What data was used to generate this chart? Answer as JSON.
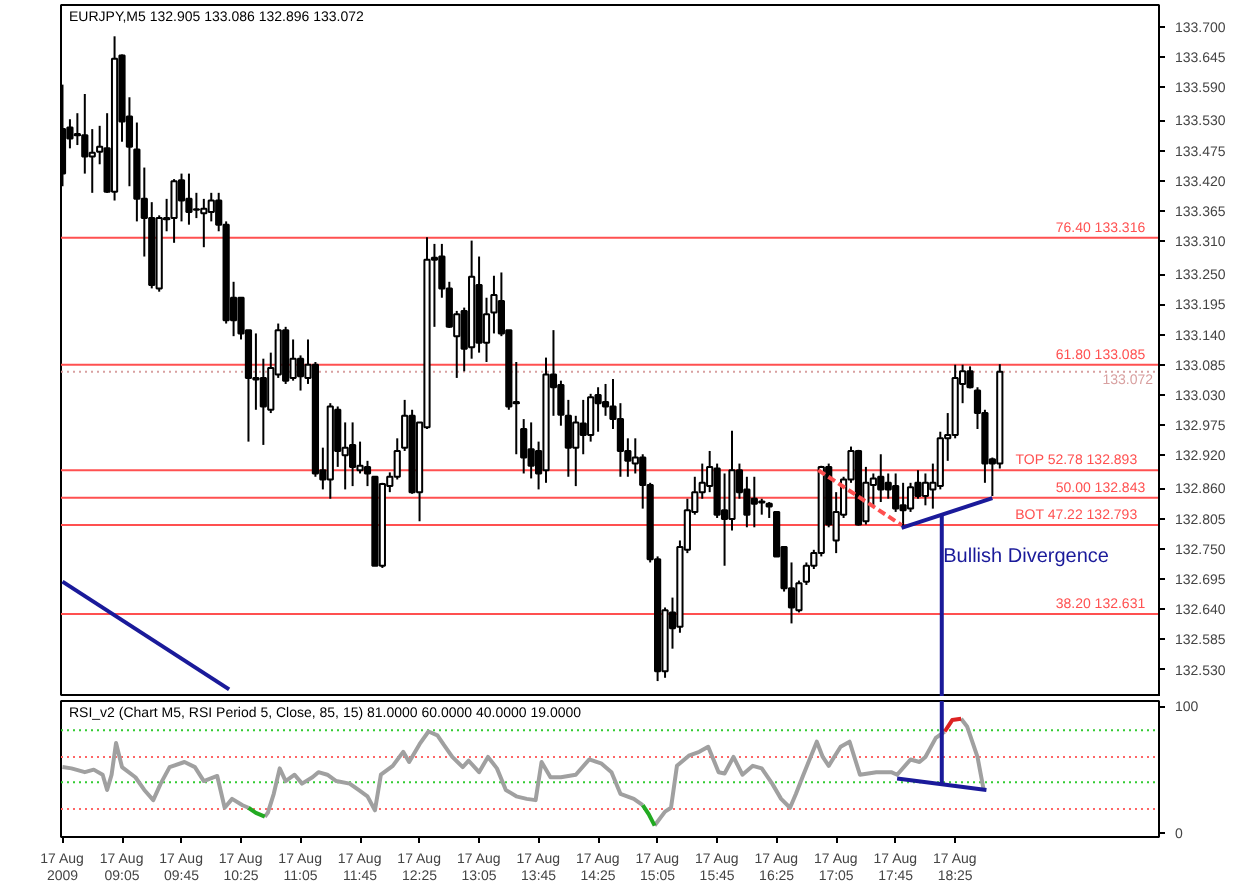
{
  "chart_data": [
    {
      "type": "candlestick",
      "title": "EURJPY,M5  132.905 133.086 132.896 133.072",
      "x": [
        "2009-08-17T08:25",
        "2009-08-17T08:30",
        "2009-08-17T08:35",
        "2009-08-17T08:40",
        "2009-08-17T08:45",
        "2009-08-17T08:50",
        "2009-08-17T08:55",
        "2009-08-17T09:00",
        "2009-08-17T09:05",
        "2009-08-17T09:10",
        "2009-08-17T09:15",
        "2009-08-17T09:20",
        "2009-08-17T09:25",
        "2009-08-17T09:30",
        "2009-08-17T09:35",
        "2009-08-17T09:40",
        "2009-08-17T09:45",
        "2009-08-17T09:50",
        "2009-08-17T09:55",
        "2009-08-17T10:00",
        "2009-08-17T10:05",
        "2009-08-17T10:10",
        "2009-08-17T10:15",
        "2009-08-17T10:20",
        "2009-08-17T10:25",
        "2009-08-17T10:30",
        "2009-08-17T10:35",
        "2009-08-17T10:40",
        "2009-08-17T10:45",
        "2009-08-17T10:50",
        "2009-08-17T10:55",
        "2009-08-17T11:00",
        "2009-08-17T11:05",
        "2009-08-17T11:10",
        "2009-08-17T11:15",
        "2009-08-17T11:20",
        "2009-08-17T11:25",
        "2009-08-17T11:30",
        "2009-08-17T11:35",
        "2009-08-17T11:40",
        "2009-08-17T11:45",
        "2009-08-17T11:50",
        "2009-08-17T11:55",
        "2009-08-17T12:00",
        "2009-08-17T12:05",
        "2009-08-17T12:10",
        "2009-08-17T12:15",
        "2009-08-17T12:20",
        "2009-08-17T12:25",
        "2009-08-17T12:30",
        "2009-08-17T12:35",
        "2009-08-17T12:40",
        "2009-08-17T12:45",
        "2009-08-17T12:50",
        "2009-08-17T12:55",
        "2009-08-17T13:00",
        "2009-08-17T13:05",
        "2009-08-17T13:10",
        "2009-08-17T13:15",
        "2009-08-17T13:20",
        "2009-08-17T13:25",
        "2009-08-17T13:30",
        "2009-08-17T13:35",
        "2009-08-17T13:40",
        "2009-08-17T13:45",
        "2009-08-17T13:50",
        "2009-08-17T13:55",
        "2009-08-17T14:00",
        "2009-08-17T14:05",
        "2009-08-17T14:10",
        "2009-08-17T14:15",
        "2009-08-17T14:20",
        "2009-08-17T14:25",
        "2009-08-17T14:30",
        "2009-08-17T14:35",
        "2009-08-17T14:40",
        "2009-08-17T14:45",
        "2009-08-17T14:50",
        "2009-08-17T14:55",
        "2009-08-17T15:00",
        "2009-08-17T15:05",
        "2009-08-17T15:10",
        "2009-08-17T15:15",
        "2009-08-17T15:20",
        "2009-08-17T15:25",
        "2009-08-17T15:30",
        "2009-08-17T15:35",
        "2009-08-17T15:40",
        "2009-08-17T15:45",
        "2009-08-17T15:50",
        "2009-08-17T15:55",
        "2009-08-17T16:00",
        "2009-08-17T16:05",
        "2009-08-17T16:10",
        "2009-08-17T16:15",
        "2009-08-17T16:20",
        "2009-08-17T16:25",
        "2009-08-17T16:30",
        "2009-08-17T16:35",
        "2009-08-17T16:40",
        "2009-08-17T16:45",
        "2009-08-17T16:50",
        "2009-08-17T16:55",
        "2009-08-17T17:00",
        "2009-08-17T17:05",
        "2009-08-17T17:10",
        "2009-08-17T17:15",
        "2009-08-17T17:20",
        "2009-08-17T17:25",
        "2009-08-17T17:30",
        "2009-08-17T17:35",
        "2009-08-17T17:40",
        "2009-08-17T17:45",
        "2009-08-17T17:50",
        "2009-08-17T17:55",
        "2009-08-17T18:00",
        "2009-08-17T18:05",
        "2009-08-17T18:10",
        "2009-08-17T18:15",
        "2009-08-17T18:20",
        "2009-08-17T18:25",
        "2009-08-17T18:30",
        "2009-08-17T18:35",
        "2009-08-17T18:40",
        "2009-08-17T18:45",
        "2009-08-17T18:50",
        "2009-08-17T18:55"
      ],
      "ohlc": [
        [
          133.514,
          133.595,
          133.41,
          133.433
        ],
        [
          133.517,
          133.532,
          133.479,
          133.497
        ],
        [
          133.503,
          133.543,
          133.485,
          133.505
        ],
        [
          133.503,
          133.578,
          133.433,
          133.464
        ],
        [
          133.464,
          133.514,
          133.398,
          133.471
        ],
        [
          133.473,
          133.52,
          133.45,
          133.482
        ],
        [
          133.479,
          133.543,
          133.398,
          133.4
        ],
        [
          133.4,
          133.683,
          133.384,
          133.642
        ],
        [
          133.648,
          133.65,
          133.491,
          133.528
        ],
        [
          133.537,
          133.572,
          133.41,
          133.482
        ],
        [
          133.477,
          133.526,
          133.346,
          133.387
        ],
        [
          133.387,
          133.444,
          133.282,
          133.352
        ],
        [
          133.352,
          133.381,
          133.224,
          133.23
        ],
        [
          133.224,
          133.357,
          133.218,
          133.352
        ],
        [
          133.35,
          133.387,
          133.328,
          133.352
        ],
        [
          133.352,
          133.423,
          133.307,
          133.419
        ],
        [
          133.421,
          133.433,
          133.346,
          133.384
        ],
        [
          133.387,
          133.433,
          133.34,
          133.363
        ],
        [
          133.367,
          133.398,
          133.352,
          133.368
        ],
        [
          133.361,
          133.387,
          133.299,
          133.369
        ],
        [
          133.363,
          133.398,
          133.346,
          133.384
        ],
        [
          133.384,
          133.398,
          133.328,
          133.34
        ],
        [
          133.34,
          133.346,
          133.16,
          133.166
        ],
        [
          133.207,
          133.236,
          133.137,
          133.166
        ],
        [
          133.207,
          133.207,
          133.131,
          133.142
        ],
        [
          133.148,
          133.148,
          132.945,
          133.061
        ],
        [
          133.061,
          133.142,
          133.003,
          133.058
        ],
        [
          133.061,
          133.096,
          132.939,
          133.009
        ],
        [
          133.003,
          133.107,
          132.997,
          133.079
        ],
        [
          133.067,
          133.16,
          133.061,
          133.148
        ],
        [
          133.148,
          133.154,
          133.05,
          133.056
        ],
        [
          133.061,
          133.131,
          133.056,
          133.096
        ],
        [
          133.096,
          133.102,
          133.038,
          133.064
        ],
        [
          133.061,
          133.131,
          133.05,
          133.085
        ],
        [
          133.085,
          133.09,
          132.881,
          132.887
        ],
        [
          132.893,
          132.934,
          132.858,
          132.876
        ],
        [
          132.876,
          133.015,
          132.841,
          133.009
        ],
        [
          133.003,
          133.009,
          132.899,
          132.928
        ],
        [
          132.92,
          132.98,
          132.858,
          132.934
        ],
        [
          132.939,
          132.98,
          132.864,
          132.899
        ],
        [
          132.893,
          132.945,
          132.887,
          132.901
        ],
        [
          132.899,
          132.91,
          132.864,
          132.887
        ],
        [
          132.881,
          132.881,
          132.719,
          132.719
        ],
        [
          132.719,
          132.87,
          132.715,
          132.868
        ],
        [
          132.864,
          132.889,
          132.853,
          132.881
        ],
        [
          132.881,
          132.951,
          132.876,
          132.928
        ],
        [
          132.934,
          133.021,
          132.928,
          132.992
        ],
        [
          132.992,
          133.003,
          132.85,
          132.853
        ],
        [
          132.853,
          132.98,
          132.8,
          132.98
        ],
        [
          132.971,
          133.317,
          132.968,
          133.276
        ],
        [
          133.28,
          133.305,
          133.154,
          133.276
        ],
        [
          133.282,
          133.305,
          133.207,
          133.224
        ],
        [
          133.224,
          133.236,
          133.152,
          133.154
        ],
        [
          133.137,
          133.183,
          133.061,
          133.177
        ],
        [
          133.183,
          133.189,
          133.073,
          133.114
        ],
        [
          133.117,
          133.311,
          133.096,
          133.245
        ],
        [
          133.23,
          133.282,
          133.107,
          133.125
        ],
        [
          133.125,
          133.207,
          133.09,
          133.177
        ],
        [
          133.18,
          133.247,
          133.142,
          133.212
        ],
        [
          133.201,
          133.253,
          133.137,
          133.142
        ],
        [
          133.148,
          133.148,
          133.003,
          133.009
        ],
        [
          133.015,
          133.09,
          132.922,
          133.017
        ],
        [
          132.968,
          132.986,
          132.887,
          132.916
        ],
        [
          132.931,
          132.98,
          132.878,
          132.901
        ],
        [
          132.928,
          132.945,
          132.858,
          132.887
        ],
        [
          132.893,
          133.098,
          132.87,
          133.067
        ],
        [
          133.067,
          133.148,
          132.992,
          133.044
        ],
        [
          133.048,
          133.056,
          132.974,
          132.994
        ],
        [
          132.992,
          133.021,
          132.881,
          132.934
        ],
        [
          132.934,
          132.992,
          132.864,
          132.98
        ],
        [
          132.978,
          133.021,
          132.922,
          132.957
        ],
        [
          132.957,
          133.032,
          132.945,
          133.026
        ],
        [
          133.03,
          133.044,
          132.963,
          133.015
        ],
        [
          133.017,
          133.05,
          132.992,
          133.009
        ],
        [
          133.009,
          133.059,
          132.968,
          132.986
        ],
        [
          132.986,
          133.015,
          132.881,
          132.928
        ],
        [
          132.928,
          132.951,
          132.881,
          132.91
        ],
        [
          132.905,
          132.951,
          132.887,
          132.916
        ],
        [
          132.916,
          132.922,
          132.823,
          132.866
        ],
        [
          132.866,
          132.87,
          132.725,
          132.731
        ],
        [
          132.731,
          132.736,
          132.509,
          132.527
        ],
        [
          132.527,
          132.643,
          132.515,
          132.638
        ],
        [
          132.634,
          132.661,
          132.568,
          132.605
        ],
        [
          132.608,
          132.765,
          132.597,
          132.753
        ],
        [
          132.748,
          132.841,
          132.742,
          132.82
        ],
        [
          132.817,
          132.881,
          132.812,
          132.853
        ],
        [
          132.853,
          132.905,
          132.841,
          132.87
        ],
        [
          132.864,
          132.928,
          132.853,
          132.899
        ],
        [
          132.896,
          132.905,
          132.806,
          132.812
        ],
        [
          132.82,
          132.887,
          132.719,
          132.804
        ],
        [
          132.804,
          132.965,
          132.783,
          132.893
        ],
        [
          132.893,
          132.905,
          132.841,
          132.853
        ],
        [
          132.858,
          132.881,
          132.789,
          132.812
        ],
        [
          132.841,
          132.881,
          132.789,
          132.832
        ],
        [
          132.834,
          132.841,
          132.812,
          132.836
        ],
        [
          132.832,
          132.835,
          132.806,
          132.827
        ],
        [
          132.817,
          132.817,
          132.736,
          132.736
        ],
        [
          132.753,
          132.753,
          132.672,
          132.678
        ],
        [
          132.678,
          132.725,
          132.614,
          132.643
        ],
        [
          132.638,
          132.692,
          132.634,
          132.687
        ],
        [
          132.69,
          132.725,
          132.684,
          132.719
        ],
        [
          132.719,
          132.748,
          132.713,
          132.742
        ],
        [
          132.742,
          132.901,
          132.736,
          132.899
        ],
        [
          132.899,
          132.905,
          132.789,
          132.794
        ],
        [
          132.765,
          132.853,
          132.742,
          132.817
        ],
        [
          132.812,
          132.881,
          132.806,
          132.876
        ],
        [
          132.876,
          132.936,
          132.87,
          132.928
        ],
        [
          132.928,
          132.93,
          132.792,
          132.794
        ],
        [
          132.8,
          132.899,
          132.794,
          132.87
        ],
        [
          132.866,
          132.887,
          132.829,
          132.878
        ],
        [
          132.881,
          132.922,
          132.835,
          132.858
        ],
        [
          132.87,
          132.887,
          132.841,
          132.858
        ],
        [
          132.864,
          132.887,
          132.817,
          132.823
        ],
        [
          132.829,
          132.87,
          132.789,
          132.82
        ],
        [
          132.823,
          132.87,
          132.817,
          132.862
        ],
        [
          132.87,
          132.893,
          132.841,
          132.846
        ],
        [
          132.846,
          132.887,
          132.829,
          132.87
        ],
        [
          132.858,
          132.905,
          132.823,
          132.87
        ],
        [
          132.864,
          132.963,
          132.858,
          132.951
        ],
        [
          132.951,
          132.997,
          132.91,
          132.957
        ],
        [
          132.957,
          133.085,
          132.951,
          133.061
        ],
        [
          133.05,
          133.085,
          133.015,
          133.073
        ],
        [
          133.073,
          133.082,
          133.042,
          133.044
        ],
        [
          133.038,
          133.044,
          132.968,
          132.997
        ],
        [
          132.997,
          133.003,
          132.87,
          132.905
        ],
        [
          132.913,
          132.916,
          132.846,
          132.905
        ],
        [
          132.905,
          133.086,
          132.896,
          133.072
        ]
      ],
      "series": [
        {
          "type": "line",
          "color": "#1a1a9a",
          "x": [
            "2009-08-17T08:25",
            "2009-08-17T10:17"
          ],
          "values": [
            132.69,
            132.494
          ]
        },
        {
          "type": "line",
          "color": "#1a1a9a",
          "x": [
            "2009-08-17T17:49",
            "2009-08-17T18:50"
          ],
          "values": [
            132.788,
            132.842
          ]
        },
        {
          "type": "line",
          "color": "#1a1a9a",
          "x": [
            "2009-08-17T18:16",
            "2009-08-17T18:16"
          ],
          "values": [
            132.812,
            132.48
          ]
        },
        {
          "type": "line",
          "color": "#ff5050",
          "line_style": "dashed",
          "x": [
            "2009-08-17T16:53",
            "2009-08-17T17:49"
          ],
          "values": [
            132.893,
            132.793
          ]
        }
      ],
      "ref_lines": [
        {
          "axis": "y",
          "value": 133.316,
          "label": "76.40   133.316",
          "color": "#ff5050"
        },
        {
          "axis": "y",
          "value": 133.085,
          "label": "61.80   133.085",
          "color": "#ff5050"
        },
        {
          "axis": "y",
          "value": 132.893,
          "label": "TOP   52.78   132.893",
          "color": "#ff5050"
        },
        {
          "axis": "y",
          "value": 132.843,
          "label": "50.00   132.843",
          "color": "#ff5050"
        },
        {
          "axis": "y",
          "value": 132.793,
          "label": "BOT   47.22   132.793",
          "color": "#ff5050"
        },
        {
          "axis": "y",
          "value": 132.631,
          "label": "38.20   132.631",
          "color": "#ff5050"
        },
        {
          "axis": "y",
          "value": 133.072,
          "label": "133.072",
          "color": "#d8a0a0",
          "line_style": "dotted"
        }
      ],
      "annotations": [
        {
          "text": "Bullish Divergence",
          "x": "2009-08-17T18:17",
          "y": 132.735
        }
      ],
      "xlim": [
        "2009-08-17T08:24",
        "2009-08-17T20:42"
      ],
      "ylim": [
        132.48,
        133.74
      ],
      "tick_labels": "y",
      "yticks": [
        {
          "value": 133.7,
          "label": "133.700"
        },
        {
          "value": 133.645,
          "label": "133.645"
        },
        {
          "value": 133.59,
          "label": "133.590"
        },
        {
          "value": 133.53,
          "label": "133.530"
        },
        {
          "value": 133.475,
          "label": "133.475"
        },
        {
          "value": 133.42,
          "label": "133.420"
        },
        {
          "value": 133.365,
          "label": "133.365"
        },
        {
          "value": 133.31,
          "label": "133.310"
        },
        {
          "value": 133.25,
          "label": "133.250"
        },
        {
          "value": 133.195,
          "label": "133.195"
        },
        {
          "value": 133.14,
          "label": "133.140"
        },
        {
          "value": 133.085,
          "label": "133.085"
        },
        {
          "value": 133.03,
          "label": "133.030"
        },
        {
          "value": 132.975,
          "label": "132.975"
        },
        {
          "value": 132.92,
          "label": "132.920"
        },
        {
          "value": 132.86,
          "label": "132.860"
        },
        {
          "value": 132.805,
          "label": "132.805"
        },
        {
          "value": 132.75,
          "label": "132.750"
        },
        {
          "value": 132.695,
          "label": "132.695"
        },
        {
          "value": 132.64,
          "label": "132.640"
        },
        {
          "value": 132.585,
          "label": "132.585"
        },
        {
          "value": 132.53,
          "label": "132.530"
        }
      ]
    },
    {
      "type": "line",
      "title": "RSI_v2  (Chart M5, RSI Period 5, Close, 85, 15)  81.0000 60.0000 40.0000 19.0000",
      "series": [
        {
          "color": "#a0a0a0",
          "x": [
            "2009-08-17T08:25",
            "2009-08-17T08:31",
            "2009-08-17T08:40",
            "2009-08-17T08:46",
            "2009-08-17T08:52",
            "2009-08-17T08:55",
            "2009-08-17T08:58",
            "2009-08-17T09:01",
            "2009-08-17T09:05",
            "2009-08-17T09:14",
            "2009-08-17T09:20",
            "2009-08-17T09:26",
            "2009-08-17T09:31",
            "2009-08-17T09:37",
            "2009-08-17T09:47",
            "2009-08-17T09:54",
            "2009-08-17T10:00",
            "2009-08-17T10:09",
            "2009-08-17T10:14",
            "2009-08-17T10:19",
            "2009-08-17T10:26",
            "2009-08-17T10:30",
            "2009-08-17T10:35",
            "2009-08-17T10:41",
            "2009-08-17T10:43",
            "2009-08-17T10:47",
            "2009-08-17T10:51",
            "2009-08-17T10:55",
            "2009-08-17T11:01",
            "2009-08-17T11:06",
            "2009-08-17T11:13",
            "2009-08-17T11:17",
            "2009-08-17T11:23",
            "2009-08-17T11:29",
            "2009-08-17T11:38",
            "2009-08-17T11:44",
            "2009-08-17T11:50",
            "2009-08-17T11:55",
            "2009-08-17T11:59",
            "2009-08-17T12:07",
            "2009-08-17T12:14",
            "2009-08-17T12:18",
            "2009-08-17T12:25",
            "2009-08-17T12:31",
            "2009-08-17T12:37",
            "2009-08-17T12:41",
            "2009-08-17T12:47",
            "2009-08-17T12:54",
            "2009-08-17T12:58",
            "2009-08-17T13:05",
            "2009-08-17T13:11",
            "2009-08-17T13:17",
            "2009-08-17T13:23",
            "2009-08-17T13:30",
            "2009-08-17T13:37",
            "2009-08-17T13:43",
            "2009-08-17T13:47",
            "2009-08-17T13:53",
            "2009-08-17T14:00",
            "2009-08-17T14:10",
            "2009-08-17T14:19",
            "2009-08-17T14:27",
            "2009-08-17T14:34",
            "2009-08-17T14:40",
            "2009-08-17T14:49",
            "2009-08-17T14:55",
            "2009-08-17T14:59",
            "2009-08-17T15:03",
            "2009-08-17T15:10",
            "2009-08-17T15:14",
            "2009-08-17T15:18",
            "2009-08-17T15:26",
            "2009-08-17T15:33",
            "2009-08-17T15:39",
            "2009-08-17T15:46",
            "2009-08-17T15:50",
            "2009-08-17T15:56",
            "2009-08-17T16:02",
            "2009-08-17T16:09",
            "2009-08-17T16:15",
            "2009-08-17T16:22",
            "2009-08-17T16:28",
            "2009-08-17T16:34",
            "2009-08-17T16:38",
            "2009-08-17T16:43",
            "2009-08-17T16:52",
            "2009-08-17T16:56",
            "2009-08-17T17:00",
            "2009-08-17T17:08",
            "2009-08-17T17:14",
            "2009-08-17T17:21",
            "2009-08-17T17:32",
            "2009-08-17T17:42",
            "2009-08-17T17:46",
            "2009-08-17T17:55",
            "2009-08-17T18:01",
            "2009-08-17T18:05",
            "2009-08-17T18:12",
            "2009-08-17T18:18",
            "2009-08-17T18:23",
            "2009-08-17T18:29",
            "2009-08-17T18:33",
            "2009-08-17T18:40",
            "2009-08-17T18:44"
          ],
          "values": [
            52,
            51,
            48,
            50,
            46,
            34,
            46,
            71,
            52,
            44,
            34,
            26,
            39,
            52,
            56,
            52,
            41,
            45,
            20,
            27,
            22,
            20,
            null,
            13,
            16,
            31,
            51,
            41,
            46,
            39,
            44,
            48,
            46,
            41,
            39,
            34,
            29,
            18,
            46,
            53,
            64,
            56,
            70,
            80,
            77,
            70,
            60,
            52,
            57,
            48,
            60,
            51,
            34,
            29,
            27,
            26,
            56,
            44,
            44,
            46,
            58,
            55,
            48,
            31,
            27,
            22,
            null,
            6,
            17,
            20,
            53,
            61,
            64,
            68,
            48,
            47,
            60,
            46,
            53,
            51,
            39,
            27,
            20,
            31,
            46,
            72,
            60,
            53,
            68,
            72,
            46,
            48,
            48,
            46,
            58,
            56,
            60,
            75,
            80,
            null,
            90,
            84,
            60,
            35
          ]
        },
        {
          "color": "#22aa22",
          "x": [
            "2009-08-17T10:30",
            "2009-08-17T10:35",
            "2009-08-17T10:41",
            "2009-08-17T12:00",
            "2009-08-17T14:55",
            "2009-08-17T14:59",
            "2009-08-17T15:03"
          ],
          "values": [
            20,
            16,
            13,
            null,
            22,
            15,
            6
          ]
        },
        {
          "color": "#dd2222",
          "x": [
            "2009-08-17T18:18",
            "2009-08-17T18:23",
            "2009-08-17T18:29"
          ],
          "values": [
            80,
            89,
            90
          ]
        },
        {
          "color": "#1a1a9a",
          "x": [
            "2009-08-17T17:46",
            "2009-08-17T18:46"
          ],
          "values": [
            43,
            34
          ]
        },
        {
          "color": "#1a1a9a",
          "x": [
            "2009-08-17T18:16",
            "2009-08-17T18:16"
          ],
          "values": [
            104,
            39
          ]
        }
      ],
      "ref_lines": [
        {
          "axis": "y",
          "value": 81,
          "color": "#33cc33",
          "line_style": "dotted"
        },
        {
          "axis": "y",
          "value": 60,
          "color": "#ff6666",
          "line_style": "dotted"
        },
        {
          "axis": "y",
          "value": 40,
          "color": "#33cc33",
          "line_style": "dotted"
        },
        {
          "axis": "y",
          "value": 19,
          "color": "#ff6666",
          "line_style": "dotted"
        }
      ],
      "xlim": [
        "2009-08-17T08:24",
        "2009-08-17T20:42"
      ],
      "ylim": [
        -3,
        104
      ],
      "yticks": [
        0,
        100
      ],
      "xticks": [
        {
          "value": "2009-08-17T08:25",
          "label": "17 Aug 2009"
        },
        {
          "value": "2009-08-17T09:05",
          "label": "17 Aug 09:05"
        },
        {
          "value": "2009-08-17T09:45",
          "label": "17 Aug 09:45"
        },
        {
          "value": "2009-08-17T10:25",
          "label": "17 Aug 10:25"
        },
        {
          "value": "2009-08-17T11:05",
          "label": "17 Aug 11:05"
        },
        {
          "value": "2009-08-17T11:45",
          "label": "17 Aug 11:45"
        },
        {
          "value": "2009-08-17T12:25",
          "label": "17 Aug 12:25"
        },
        {
          "value": "2009-08-17T13:05",
          "label": "17 Aug 13:05"
        },
        {
          "value": "2009-08-17T13:45",
          "label": "17 Aug 13:45"
        },
        {
          "value": "2009-08-17T14:25",
          "label": "17 Aug 14:25"
        },
        {
          "value": "2009-08-17T15:05",
          "label": "17 Aug 15:05"
        },
        {
          "value": "2009-08-17T15:45",
          "label": "17 Aug 15:45"
        },
        {
          "value": "2009-08-17T16:25",
          "label": "17 Aug 16:25"
        },
        {
          "value": "2009-08-17T17:05",
          "label": "17 Aug 17:05"
        },
        {
          "value": "2009-08-17T17:45",
          "label": "17 Aug 17:45"
        },
        {
          "value": "2009-08-17T18:25",
          "label": "17 Aug 18:25"
        }
      ]
    }
  ]
}
